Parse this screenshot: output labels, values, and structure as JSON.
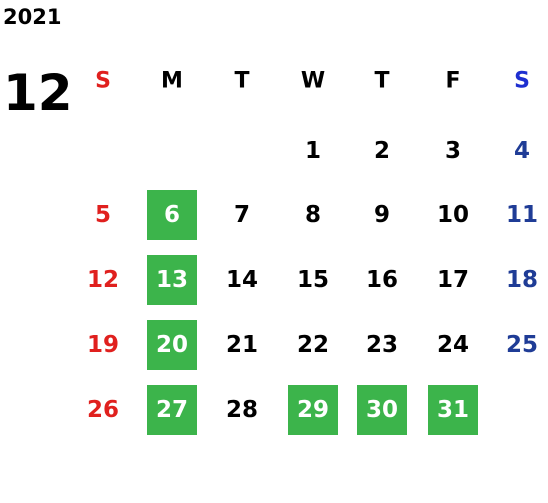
{
  "calendar": {
    "year": "2021",
    "month": "12",
    "weekdays": [
      "S",
      "M",
      "T",
      "W",
      "T",
      "F",
      "S"
    ],
    "colors": {
      "sunday": "#e0201e",
      "saturday": "#1f3c96",
      "weekday": "#000000",
      "highlight": "#3cb44b",
      "highlight_text": "#ffffff",
      "sunday_header": "#e0201e",
      "saturday_header": "#1e2fd0"
    },
    "weeks": [
      [
        null,
        null,
        null,
        {
          "day": "1"
        },
        {
          "day": "2"
        },
        {
          "day": "3"
        },
        {
          "day": "4"
        }
      ],
      [
        {
          "day": "5"
        },
        {
          "day": "6",
          "highlight": true
        },
        {
          "day": "7"
        },
        {
          "day": "8"
        },
        {
          "day": "9"
        },
        {
          "day": "10"
        },
        {
          "day": "11"
        }
      ],
      [
        {
          "day": "12"
        },
        {
          "day": "13",
          "highlight": true
        },
        {
          "day": "14"
        },
        {
          "day": "15"
        },
        {
          "day": "16"
        },
        {
          "day": "17"
        },
        {
          "day": "18"
        }
      ],
      [
        {
          "day": "19"
        },
        {
          "day": "20",
          "highlight": true
        },
        {
          "day": "21"
        },
        {
          "day": "22"
        },
        {
          "day": "23"
        },
        {
          "day": "24"
        },
        {
          "day": "25"
        }
      ],
      [
        {
          "day": "26"
        },
        {
          "day": "27",
          "highlight": true
        },
        {
          "day": "28"
        },
        {
          "day": "29",
          "highlight": true
        },
        {
          "day": "30",
          "highlight": true
        },
        {
          "day": "31",
          "highlight": true
        },
        null
      ]
    ]
  }
}
